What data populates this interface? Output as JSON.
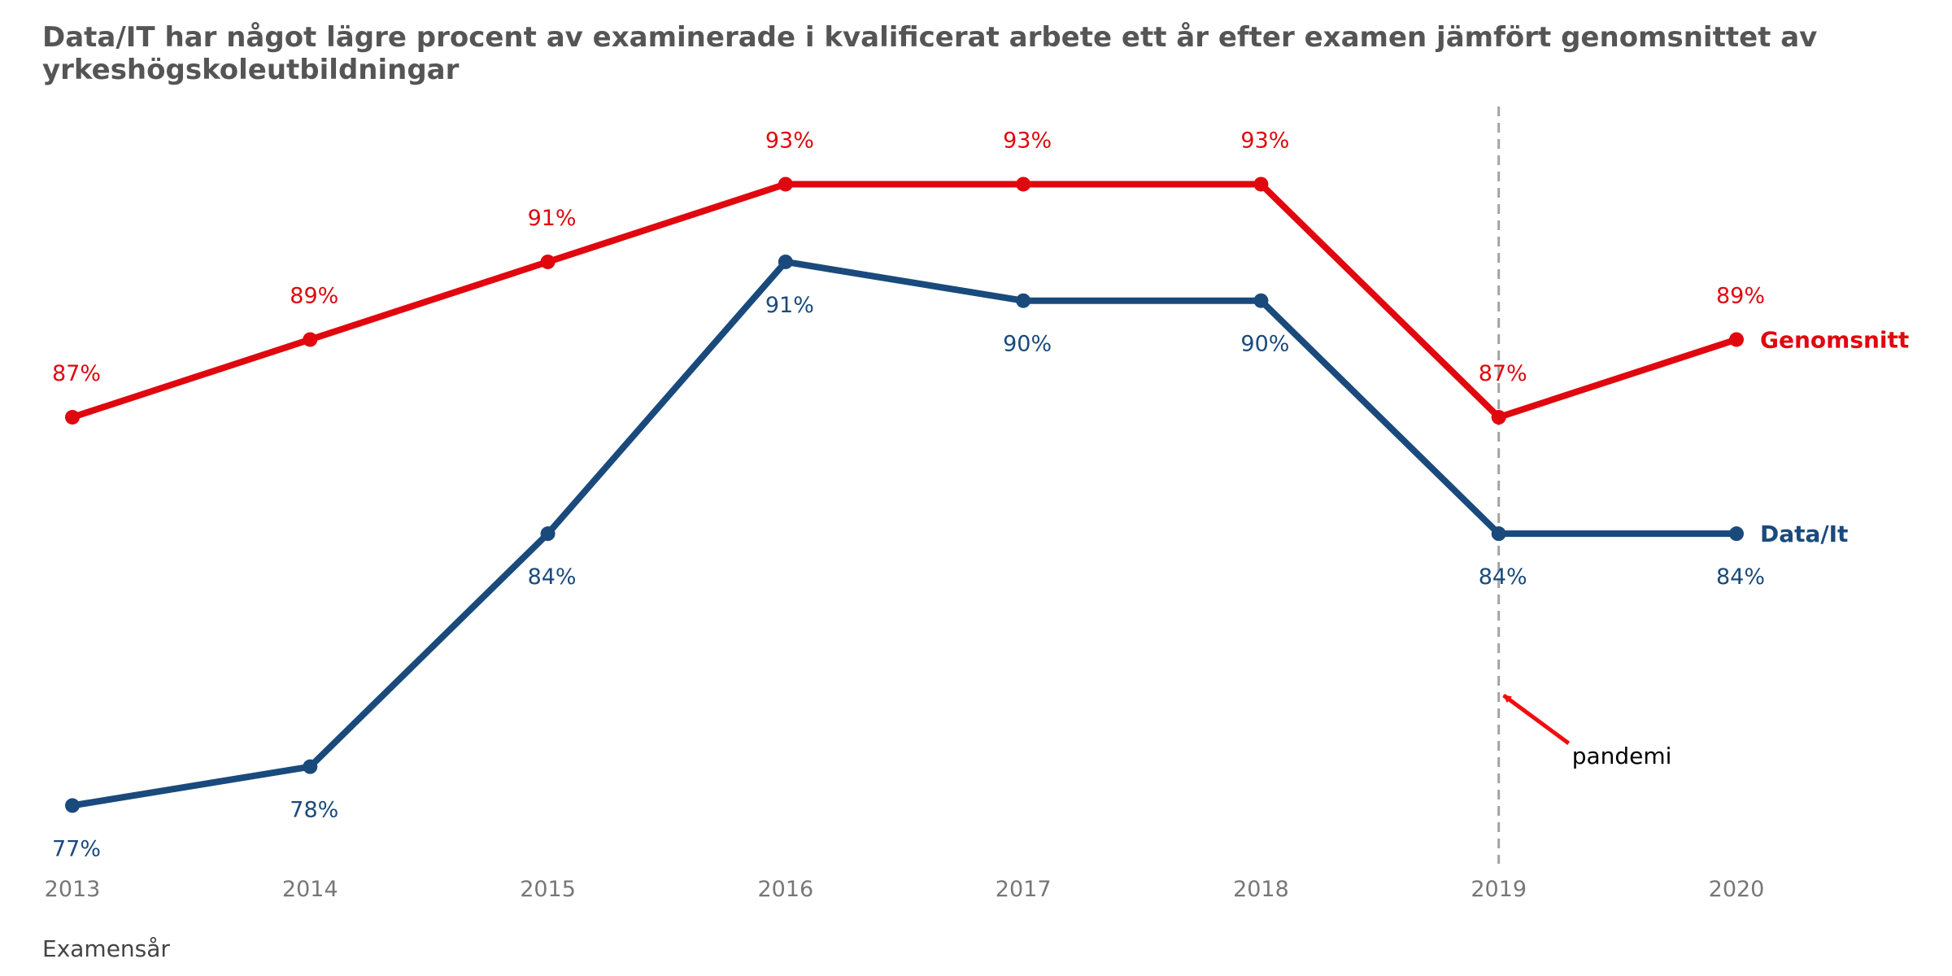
{
  "chart_data": {
    "type": "line",
    "title": "Data/IT har något lägre procent av examinerade i kvalificerat arbete ett år efter examen jämfört genomsnittet av yrkeshögskoleutbildningar",
    "xlabel": "Examensår",
    "ylabel": "",
    "x": [
      2013,
      2014,
      2015,
      2016,
      2017,
      2018,
      2019,
      2020
    ],
    "ylim": [
      75.5,
      95
    ],
    "grid": false,
    "legend": "inline-right",
    "series": [
      {
        "name": "Genomsnitt",
        "color": "#e0070f",
        "values": [
          87,
          89,
          91,
          93,
          93,
          93,
          87,
          89
        ],
        "labels": [
          "87%",
          "89%",
          "91%",
          "93%",
          "93%",
          "93%",
          "87%",
          "89%"
        ],
        "label_position": "above"
      },
      {
        "name": "Data/It",
        "color": "#1a4a7c",
        "values": [
          77,
          78,
          84,
          91,
          90,
          90,
          84,
          84
        ],
        "labels": [
          "77%",
          "78%",
          "84%",
          "91%",
          "90%",
          "90%",
          "84%",
          "84%"
        ],
        "label_position": "below"
      }
    ],
    "vline": {
      "x": 2019,
      "color": "#a3a3a3",
      "style": "dashed"
    },
    "annotation": {
      "text": "pandemi",
      "arrow_color": "#f20d0d",
      "target_x": 2019,
      "target_y": 79.9
    }
  }
}
